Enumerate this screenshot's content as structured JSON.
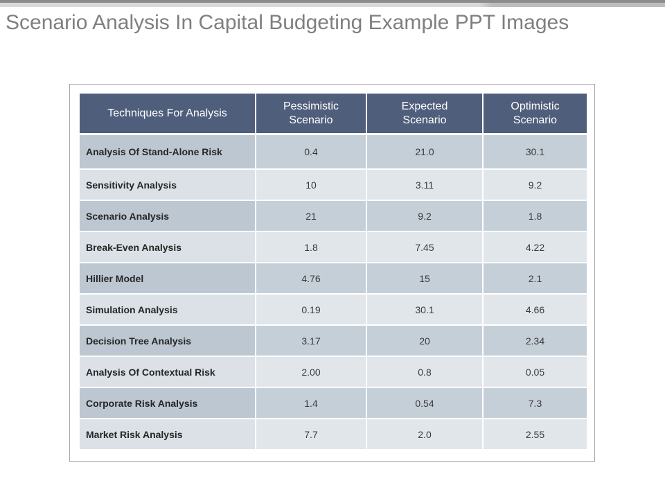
{
  "slide": {
    "title": "Scenario Analysis In Capital Budgeting Example PPT Images"
  },
  "table": {
    "headers": [
      "Techniques For Analysis",
      "Pessimistic Scenario",
      "Expected Scenario",
      "Optimistic Scenario"
    ],
    "rows": [
      [
        "Analysis Of Stand-Alone Risk",
        "0.4",
        "21.0",
        "30.1"
      ],
      [
        "Sensitivity Analysis",
        "10",
        "3.11",
        "9.2"
      ],
      [
        "Scenario Analysis",
        "21",
        "9.2",
        "1.8"
      ],
      [
        "Break-Even Analysis",
        "1.8",
        "7.45",
        "4.22"
      ],
      [
        "Hillier Model",
        "4.76",
        "15",
        "2.1"
      ],
      [
        "Simulation Analysis",
        "0.19",
        "30.1",
        "4.66"
      ],
      [
        "Decision Tree Analysis",
        "3.17",
        "20",
        "2.34"
      ],
      [
        "Analysis Of Contextual Risk",
        "2.00",
        "0.8",
        "0.05"
      ],
      [
        "Corporate Risk Analysis",
        "1.4",
        "0.54",
        "7.3"
      ],
      [
        "Market Risk Analysis",
        "7.7",
        "2.0",
        "2.55"
      ]
    ]
  },
  "colors": {
    "header_bg": "#4f5e7b",
    "row_dark": "#bcc7d1",
    "row_light": "#dbe1e7",
    "title_text": "#7f7f7f"
  }
}
